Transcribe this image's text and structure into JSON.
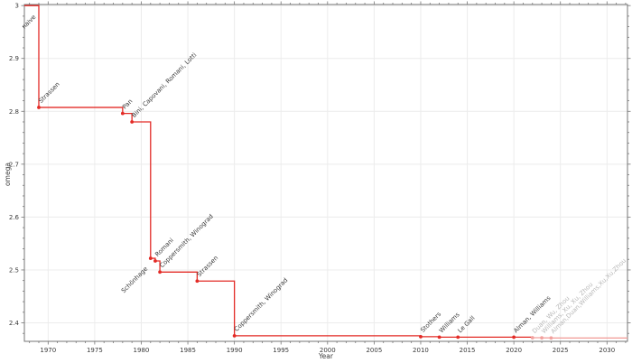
{
  "chart_data": {
    "type": "line",
    "subtype": "step-post",
    "title": "",
    "xlabel": "Year",
    "ylabel": "omega",
    "xlim": [
      1967.45,
      2032.2
    ],
    "ylim": [
      2.365,
      3.002
    ],
    "x_major_ticks": [
      1970,
      1975,
      1980,
      1985,
      1990,
      1995,
      2000,
      2005,
      2010,
      2015,
      2020,
      2025,
      2030
    ],
    "x_minor_step": 1,
    "y_major_ticks": [
      2.4,
      2.5,
      2.6,
      2.7,
      2.8,
      2.9,
      3
    ],
    "y_minor_step": 0.02,
    "grid": true,
    "legend": "none",
    "initial_omega": 3,
    "initial_label": "naive",
    "points": [
      {
        "year": 1969,
        "omega": 2.8074,
        "label": "Strassen"
      },
      {
        "year": 1978,
        "omega": 2.796,
        "label": "Pan"
      },
      {
        "year": 1979,
        "omega": 2.78,
        "label": "Bini, Capovani, Romani, Lotti"
      },
      {
        "year": 1981,
        "omega": 2.522,
        "label": "Schönhage",
        "label_below": true
      },
      {
        "year": 1981.5,
        "omega": 2.517,
        "label": "Romani"
      },
      {
        "year": 1982,
        "omega": 2.496,
        "label": "Coppersmith, Winograd"
      },
      {
        "year": 1986,
        "omega": 2.479,
        "label": "Strassen"
      },
      {
        "year": 1990,
        "omega": 2.3755,
        "label": "Coppersmith, Winograd"
      },
      {
        "year": 2010,
        "omega": 2.3737,
        "label": "Stothers"
      },
      {
        "year": 2012,
        "omega": 2.3729,
        "label": "Williams"
      },
      {
        "year": 2014,
        "omega": 2.3728639,
        "label": "Le Gall"
      },
      {
        "year": 2020,
        "omega": 2.3728596,
        "label": "Alman, Williams"
      },
      {
        "year": 2022,
        "omega": 2.371866,
        "label": "Duan, Wu, Zhou",
        "faded": true
      },
      {
        "year": 2023,
        "omega": 2.371552,
        "label": "Williams, Xu, Xu, Zhou",
        "faded": true
      },
      {
        "year": 2024,
        "omega": 2.371339,
        "label": "Alman,Duan,Williams,Xu,Xu,Zhou",
        "faded": true
      }
    ],
    "colors": {
      "line": "#e32b26",
      "faded_line": "#f2a19e",
      "point_label": "#3a3a3a",
      "faded_point_label": "#b7b7b7",
      "grid": "#ececec",
      "spine": "#767676",
      "background": "#ffffff"
    }
  }
}
